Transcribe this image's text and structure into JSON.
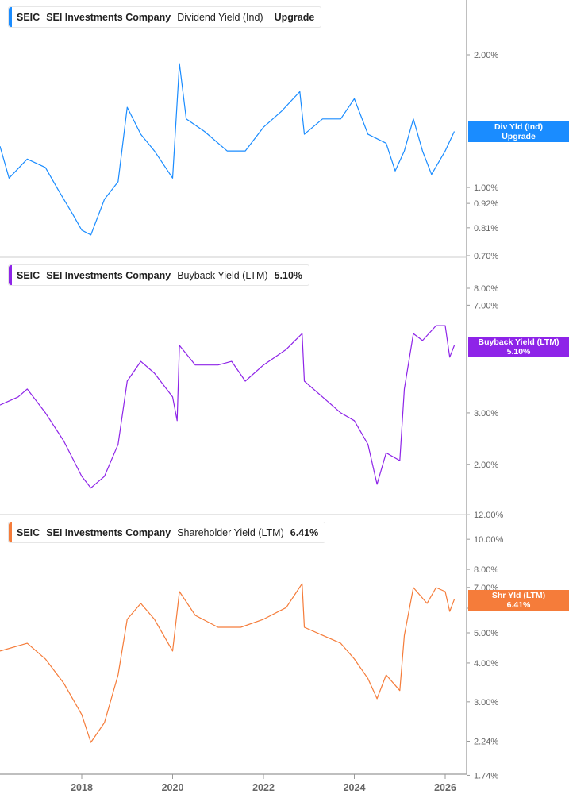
{
  "chart_data": [
    {
      "type": "line",
      "ticker": "SEIC",
      "company": "SEI Investments Company",
      "metric": "Dividend Yield (Ind)",
      "last_value_label": "Upgrade",
      "tag_lines": [
        "Div Yld (Ind)",
        "Upgrade"
      ],
      "color": "#1a8cff",
      "y_scale": "log",
      "y_ticks": [
        "2.00%",
        "1.00%",
        "0.92%",
        "0.81%",
        "0.70%"
      ],
      "y_tick_values": [
        2.0,
        1.0,
        0.92,
        0.81,
        0.7
      ],
      "x": [
        2016.2,
        2016.4,
        2016.8,
        2017.2,
        2017.5,
        2017.8,
        2018.0,
        2018.2,
        2018.5,
        2018.8,
        2019.0,
        2019.3,
        2019.6,
        2020.0,
        2020.15,
        2020.3,
        2020.7,
        2021.2,
        2021.6,
        2022.0,
        2022.4,
        2022.8,
        2022.9,
        2023.3,
        2023.7,
        2024.0,
        2024.3,
        2024.7,
        2024.9,
        2025.1,
        2025.3,
        2025.5,
        2025.7,
        2026.0,
        2026.2
      ],
      "y": [
        1.24,
        1.05,
        1.16,
        1.11,
        0.98,
        0.87,
        0.8,
        0.78,
        0.94,
        1.03,
        1.52,
        1.32,
        1.21,
        1.05,
        1.91,
        1.43,
        1.34,
        1.21,
        1.21,
        1.37,
        1.49,
        1.65,
        1.32,
        1.43,
        1.43,
        1.59,
        1.32,
        1.26,
        1.09,
        1.21,
        1.43,
        1.21,
        1.07,
        1.21,
        1.34
      ]
    },
    {
      "type": "line",
      "ticker": "SEIC",
      "company": "SEI Investments Company",
      "metric": "Buyback Yield (LTM)",
      "last_value_label": "5.10%",
      "tag_lines": [
        "Buyback Yield (LTM)",
        "5.10%"
      ],
      "color": "#8e24e8",
      "y_scale": "log",
      "y_ticks": [
        "8.00%",
        "7.00%",
        "3.00%",
        "2.00%"
      ],
      "y_tick_values": [
        8,
        7,
        3,
        2
      ],
      "x": [
        2016.2,
        2016.6,
        2016.8,
        2017.2,
        2017.6,
        2018.0,
        2018.2,
        2018.5,
        2018.8,
        2019.0,
        2019.3,
        2019.6,
        2020.0,
        2020.1,
        2020.15,
        2020.5,
        2021.0,
        2021.3,
        2021.6,
        2022.0,
        2022.5,
        2022.85,
        2022.9,
        2023.3,
        2023.7,
        2024.0,
        2024.3,
        2024.5,
        2024.7,
        2025.0,
        2025.1,
        2025.3,
        2025.5,
        2025.8,
        2026.0,
        2026.1,
        2026.2
      ],
      "y": [
        3.19,
        3.4,
        3.62,
        3.0,
        2.41,
        1.82,
        1.66,
        1.82,
        2.34,
        3.85,
        4.5,
        4.1,
        3.4,
        2.82,
        5.1,
        4.37,
        4.37,
        4.5,
        3.85,
        4.37,
        4.94,
        5.6,
        3.85,
        3.4,
        3.0,
        2.82,
        2.34,
        1.71,
        2.19,
        2.06,
        3.62,
        5.6,
        5.3,
        5.96,
        5.96,
        4.65,
        5.1
      ]
    },
    {
      "type": "line",
      "ticker": "SEIC",
      "company": "SEI Investments Company",
      "metric": "Shareholder Yield (LTM)",
      "last_value_label": "6.41%",
      "tag_lines": [
        "Shr Yld (LTM)",
        "6.41%"
      ],
      "color": "#f57c3a",
      "y_scale": "log",
      "y_ticks": [
        "12.00%",
        "10.00%",
        "8.00%",
        "7.00%",
        "6.00%",
        "5.00%",
        "4.00%",
        "3.00%",
        "2.24%",
        "1.74%"
      ],
      "y_tick_values": [
        12,
        10,
        8,
        7,
        6,
        5,
        4,
        3,
        2.24,
        1.74
      ],
      "x": [
        2016.2,
        2016.8,
        2017.2,
        2017.6,
        2018.0,
        2018.2,
        2018.5,
        2018.8,
        2019.0,
        2019.3,
        2019.6,
        2020.0,
        2020.15,
        2020.5,
        2021.0,
        2021.5,
        2022.0,
        2022.5,
        2022.85,
        2022.9,
        2023.3,
        2023.7,
        2024.0,
        2024.3,
        2024.5,
        2024.7,
        2025.0,
        2025.1,
        2025.3,
        2025.6,
        2025.8,
        2026.0,
        2026.1,
        2026.2
      ],
      "y": [
        4.37,
        4.63,
        4.12,
        3.45,
        2.73,
        2.22,
        2.57,
        3.66,
        5.53,
        6.22,
        5.53,
        4.37,
        6.79,
        5.69,
        5.21,
        5.21,
        5.53,
        6.03,
        7.2,
        5.21,
        4.91,
        4.63,
        4.12,
        3.56,
        3.07,
        3.66,
        3.26,
        4.91,
        6.99,
        6.22,
        6.99,
        6.79,
        5.86,
        6.41
      ]
    }
  ],
  "x_axis": {
    "ticks": [
      "2018",
      "2020",
      "2022",
      "2024",
      "2026"
    ],
    "tick_values": [
      2018,
      2020,
      2022,
      2024,
      2026
    ]
  }
}
